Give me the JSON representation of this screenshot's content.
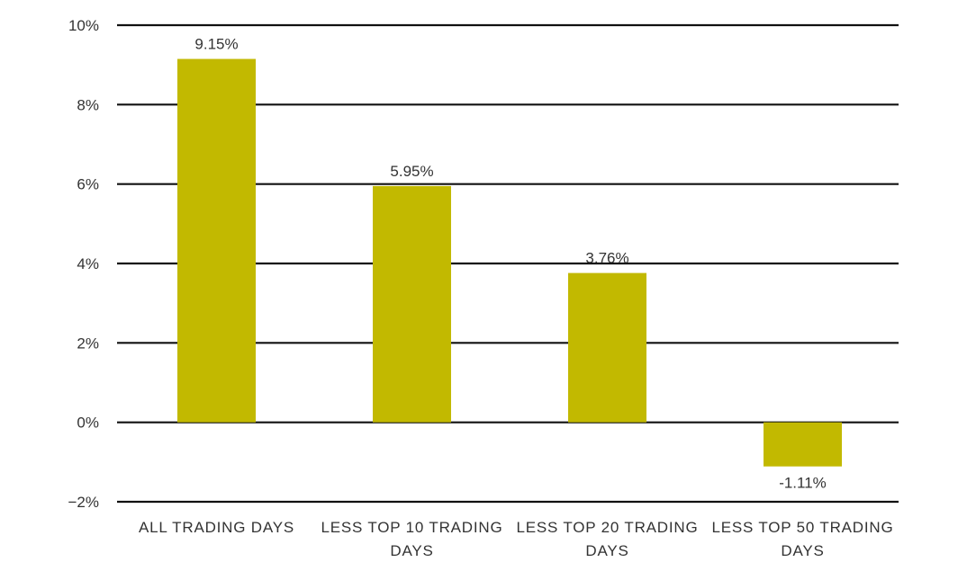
{
  "chart_data": {
    "type": "bar",
    "title": "",
    "xlabel": "",
    "ylabel": "",
    "categories": [
      [
        "ALL TRADING DAYS"
      ],
      [
        "LESS TOP 10 TRADING",
        "DAYS"
      ],
      [
        "LESS TOP 20 TRADING",
        "DAYS"
      ],
      [
        "LESS TOP 50 TRADING",
        "DAYS"
      ]
    ],
    "values": [
      9.15,
      5.95,
      3.76,
      -1.11
    ],
    "data_labels": [
      "9.15%",
      "5.95%",
      "3.76%",
      "-1.11%"
    ],
    "ylim": [
      -2,
      10
    ],
    "yticks": [
      10,
      8,
      6,
      4,
      2,
      0,
      -2
    ],
    "ytick_labels": [
      "10%",
      "8%",
      "6%",
      "4%",
      "2%",
      "0%",
      "−2%"
    ],
    "grid": true,
    "legend": "none",
    "colors": {
      "bar": "#c2b900",
      "gridline": "#111111",
      "text": "#333333"
    }
  }
}
